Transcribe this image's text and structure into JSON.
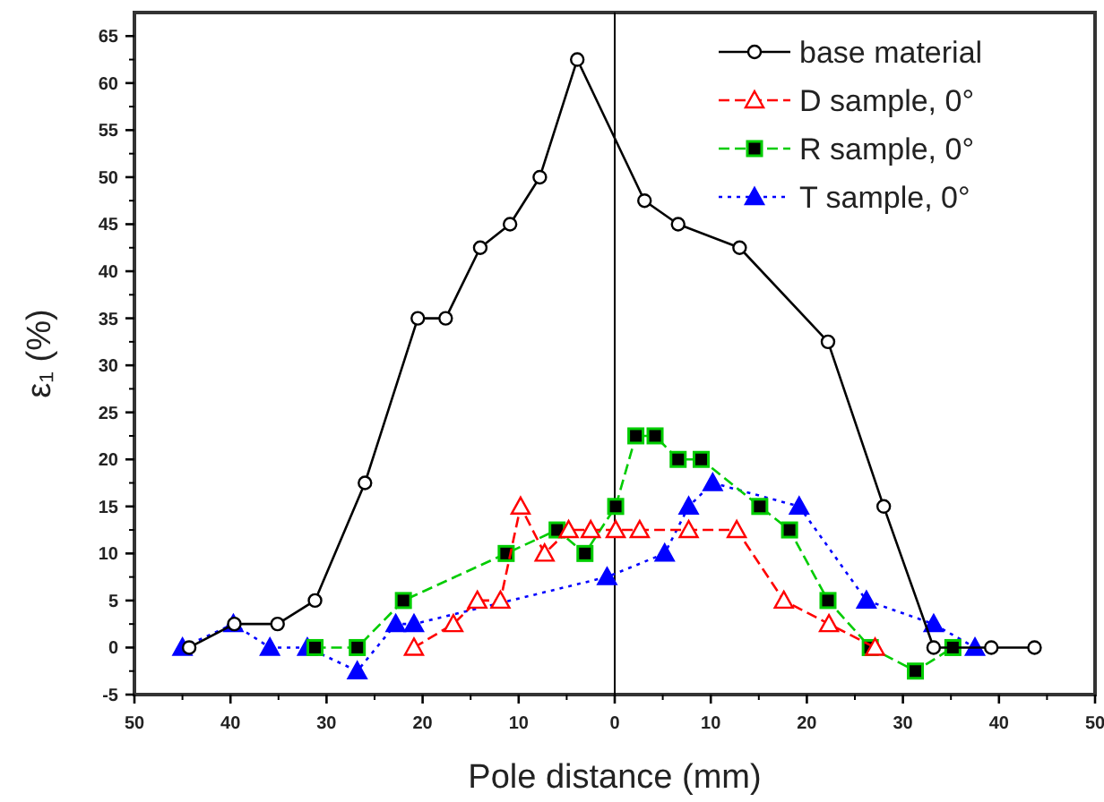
{
  "chart_data": {
    "type": "line",
    "xlabel": "Pole distance (mm)",
    "ylabel": "ε₁ (%)",
    "xlim": [
      -50,
      50
    ],
    "xticks": [
      {
        "value": -50,
        "label": "50"
      },
      {
        "value": -40,
        "label": "40"
      },
      {
        "value": -30,
        "label": "30"
      },
      {
        "value": -20,
        "label": "20"
      },
      {
        "value": -10,
        "label": "10"
      },
      0,
      10,
      20,
      30,
      40,
      50
    ],
    "ylim": [
      -5,
      67.5
    ],
    "yticks": [
      -5,
      0,
      5,
      10,
      15,
      20,
      25,
      30,
      35,
      40,
      45,
      50,
      55,
      60,
      65
    ],
    "grid": false,
    "legend": "top right",
    "ref_lines": [
      {
        "axis": "x",
        "value": 0,
        "color": "#000000",
        "line_style": "solid"
      }
    ],
    "series": [
      {
        "name": "base material",
        "color": "#000000",
        "marker": "circle",
        "line_style": "solid",
        "x": [
          -44.3,
          -39.6,
          -35.1,
          -31.2,
          -26,
          -20.5,
          -17.6,
          -14,
          -10.9,
          -7.8,
          -3.9,
          3.1,
          6.6,
          13,
          22.2,
          28,
          33.2,
          39.2,
          43.7
        ],
        "values": [
          0,
          2.5,
          2.5,
          5,
          17.5,
          35,
          35,
          42.5,
          45,
          50,
          62.5,
          47.5,
          45,
          42.5,
          32.5,
          15,
          0,
          0,
          0
        ]
      },
      {
        "name": "D sample, 0°",
        "color": "#ff0000",
        "marker": "triangle",
        "line_style": "dashed",
        "x": [
          -20.9,
          -16.8,
          -14.3,
          -11.9,
          -9.8,
          -7.3,
          -4.8,
          -2.5,
          0.1,
          2.6,
          7.7,
          12.7,
          17.6,
          22.3,
          27.1
        ],
        "values": [
          0,
          2.5,
          5,
          5,
          15,
          10,
          12.5,
          12.5,
          12.5,
          12.5,
          12.5,
          12.5,
          5,
          2.5,
          0
        ]
      },
      {
        "name": "R sample, 0°",
        "color": "#00cc00",
        "marker": "square",
        "line_style": "dashed",
        "x": [
          -31.2,
          -26.8,
          -22,
          -11.3,
          -6,
          -3.1,
          0.1,
          2.2,
          4.2,
          6.6,
          9,
          15.1,
          18.2,
          22.2,
          26.6,
          31.3,
          35.2
        ],
        "values": [
          0,
          0,
          5,
          10,
          12.5,
          10,
          15,
          22.5,
          22.5,
          20,
          20,
          15,
          12.5,
          5,
          0,
          -2.5,
          0
        ]
      },
      {
        "name": "T sample, 0°",
        "color": "#0000ff",
        "marker": "triangle",
        "line_style": "dotted",
        "x": [
          -45,
          -39.7,
          -35.9,
          -32,
          -26.8,
          -22.8,
          -20.9,
          -0.8,
          5.2,
          7.7,
          10.2,
          19.2,
          26.2,
          33.2,
          37.5
        ],
        "values": [
          0,
          2.5,
          0,
          0,
          -2.5,
          2.5,
          2.5,
          7.5,
          10,
          15,
          17.5,
          15,
          5,
          2.5,
          0
        ]
      }
    ]
  }
}
